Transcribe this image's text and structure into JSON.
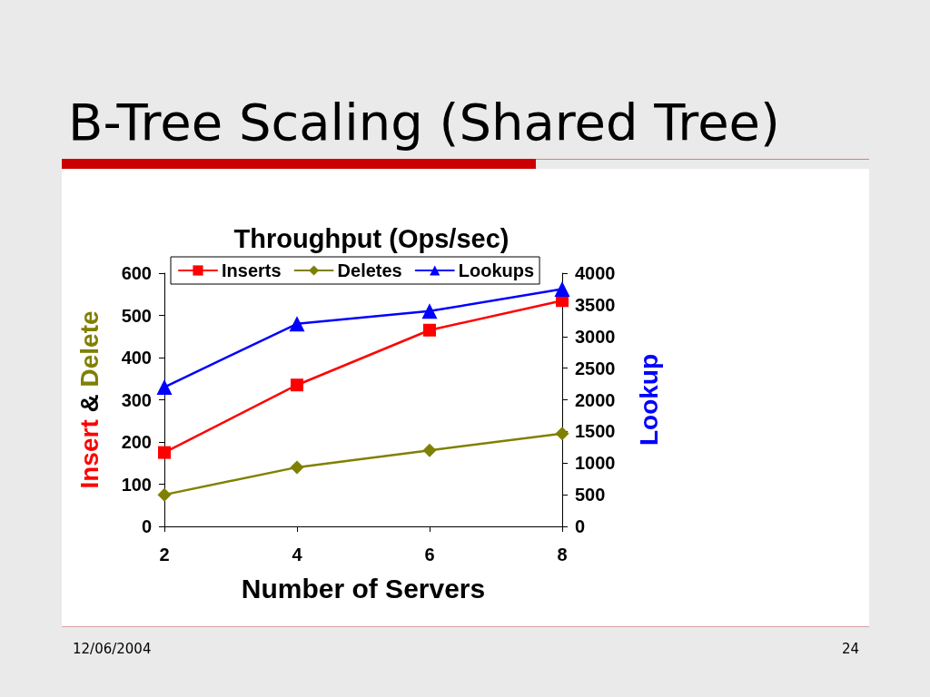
{
  "chart_data": {
    "type": "line",
    "title": "B-Tree Scaling (Shared Tree)",
    "subtitle": "Throughput (Ops/sec)",
    "xlabel": "Number of Servers",
    "ylabel": "Insert & Delete",
    "y2label": "Lookup",
    "x": [
      2,
      4,
      6,
      8
    ],
    "series": [
      {
        "name": "Inserts",
        "color": "#ff0000",
        "marker": "square",
        "values": [
          175,
          335,
          465,
          535
        ]
      },
      {
        "name": "Deletes",
        "color": "#808000",
        "marker": "diamond",
        "values": [
          75,
          140,
          180,
          220
        ]
      },
      {
        "name": "Lookups",
        "color": "#0000ff",
        "marker": "triangle",
        "axis": "y2",
        "values": [
          2200,
          3200,
          3400,
          3750
        ]
      }
    ],
    "xlim": [
      2,
      8
    ],
    "xticks": [
      2,
      4,
      6,
      8
    ],
    "ylim": [
      0,
      600
    ],
    "yticks": [
      0,
      100,
      200,
      300,
      400,
      500,
      600
    ],
    "y2lim": [
      0,
      4000
    ],
    "y2ticks": [
      0,
      500,
      1000,
      1500,
      2000,
      2500,
      3000,
      3500,
      4000
    ],
    "legend": "top",
    "line_style": "solid",
    "annotations": [
      "12/06/2004",
      "24"
    ]
  }
}
